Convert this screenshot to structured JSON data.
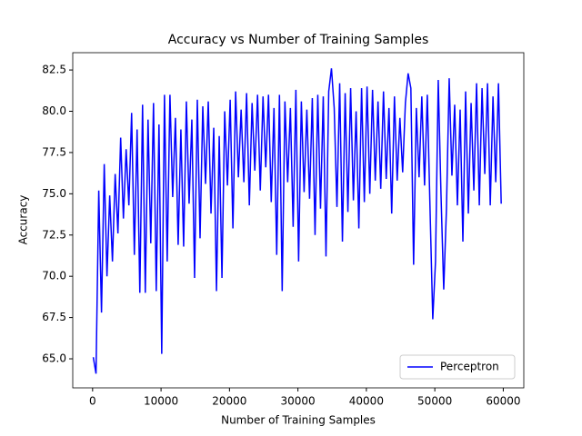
{
  "chart_data": {
    "type": "line",
    "title": "Accuracy vs Number of Training Samples",
    "x_label": "Number of Training Samples",
    "y_label": "Accuracy",
    "x": [
      100,
      500,
      900,
      1300,
      1700,
      2100,
      2500,
      2900,
      3300,
      3700,
      4100,
      4500,
      4900,
      5300,
      5700,
      6100,
      6500,
      6900,
      7300,
      7700,
      8100,
      8500,
      8900,
      9300,
      9700,
      10100,
      10500,
      10900,
      11300,
      11700,
      12100,
      12500,
      12900,
      13300,
      13700,
      14100,
      14500,
      14900,
      15300,
      15700,
      16100,
      16500,
      16900,
      17300,
      17700,
      18100,
      18500,
      18900,
      19300,
      19700,
      20100,
      20500,
      20900,
      21300,
      21700,
      22100,
      22500,
      22900,
      23300,
      23700,
      24100,
      24500,
      24900,
      25300,
      25700,
      26100,
      26500,
      26900,
      27300,
      27700,
      28100,
      28500,
      28900,
      29300,
      29700,
      30100,
      30500,
      30900,
      31300,
      31700,
      32100,
      32500,
      32900,
      33300,
      33700,
      34100,
      34500,
      34900,
      35300,
      35700,
      36100,
      36500,
      36900,
      37300,
      37700,
      38100,
      38500,
      38900,
      39300,
      39700,
      40100,
      40500,
      40900,
      41300,
      41700,
      42100,
      42500,
      42900,
      43300,
      43700,
      44100,
      44500,
      44900,
      45300,
      45700,
      46100,
      46500,
      46900,
      47300,
      47700,
      48100,
      48500,
      48900,
      49300,
      49700,
      50100,
      50500,
      50900,
      51300,
      51700,
      52100,
      52500,
      52900,
      53300,
      53700,
      54100,
      54500,
      54900,
      55300,
      55700,
      56100,
      56500,
      56900,
      57300,
      57700,
      58100,
      58500,
      58900,
      59300,
      59700
    ],
    "series": [
      {
        "name": "Perceptron",
        "color": "#0000ff",
        "values": [
          65.1,
          64.1,
          75.2,
          67.8,
          76.8,
          70.0,
          74.9,
          70.9,
          76.2,
          72.6,
          78.4,
          73.5,
          77.7,
          74.3,
          79.9,
          71.3,
          78.9,
          69.0,
          80.4,
          69.0,
          79.5,
          72.0,
          80.5,
          69.1,
          79.2,
          65.3,
          81.0,
          70.9,
          81.0,
          74.8,
          79.6,
          71.9,
          78.9,
          71.8,
          80.6,
          74.4,
          79.5,
          69.9,
          80.7,
          72.3,
          80.3,
          75.6,
          80.6,
          73.8,
          79.0,
          69.1,
          78.5,
          69.9,
          80.0,
          75.5,
          80.7,
          72.9,
          81.2,
          76.0,
          80.1,
          75.7,
          81.1,
          74.3,
          80.5,
          76.4,
          81.0,
          75.2,
          80.9,
          76.6,
          81.0,
          74.5,
          80.2,
          71.3,
          81.0,
          69.1,
          80.6,
          75.7,
          80.2,
          73.0,
          81.3,
          70.9,
          80.6,
          75.1,
          80.1,
          74.7,
          80.8,
          72.5,
          81.0,
          74.1,
          80.9,
          71.2,
          81.2,
          82.6,
          80.2,
          74.2,
          81.7,
          72.1,
          81.1,
          73.9,
          81.4,
          74.6,
          80.0,
          72.9,
          81.4,
          74.5,
          81.5,
          75.0,
          81.3,
          75.8,
          80.6,
          75.3,
          81.2,
          75.9,
          80.2,
          73.8,
          80.9,
          75.8,
          79.6,
          76.3,
          80.5,
          82.3,
          81.4,
          70.7,
          80.2,
          76.0,
          80.9,
          75.5,
          81.0,
          74.1,
          67.4,
          70.9,
          81.9,
          75.0,
          69.2,
          74.1,
          82.0,
          76.1,
          80.4,
          74.3,
          80.1,
          72.1,
          81.2,
          73.8,
          80.5,
          75.2,
          81.7,
          74.3,
          81.4,
          76.2,
          81.7,
          74.3,
          80.9,
          75.7,
          81.7,
          74.4
        ]
      }
    ],
    "xlim": [
      -2900,
      63000
    ],
    "ylim": [
      63.24,
      83.55
    ],
    "xticks": [
      0,
      10000,
      20000,
      30000,
      40000,
      50000,
      60000
    ],
    "yticks": [
      {
        "value": 65,
        "label": "65.0"
      },
      67.5,
      {
        "value": 70,
        "label": "70.0"
      },
      72.5,
      {
        "value": 75,
        "label": "75.0"
      },
      77.5,
      {
        "value": 80,
        "label": "80.0"
      },
      82.5
    ],
    "legend": "lower right"
  }
}
